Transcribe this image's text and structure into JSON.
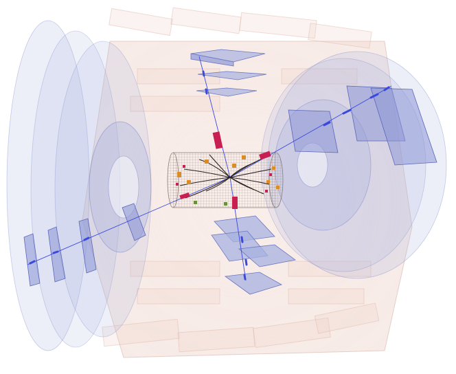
{
  "scene": {
    "subject": "particle-collision-event-display",
    "colors": {
      "background": "#ffffff",
      "muon_chamber": "#a8b2e0",
      "muon_chamber_stroke": "#6a76c0",
      "calorimeter": "#e9c3b6",
      "calorimeter_stroke": "#c79a8c",
      "tracker_mesh": "#8a7c78",
      "muon_track": "#3a48e0",
      "jet_track": "#2b2323",
      "energy_deposit_red": "#c81e52",
      "energy_deposit_orange": "#d98c2a"
    },
    "regions": [
      "left-endcap",
      "barrel",
      "right-endcap",
      "inner-tracker",
      "top-chambers",
      "bottom-chambers"
    ]
  }
}
